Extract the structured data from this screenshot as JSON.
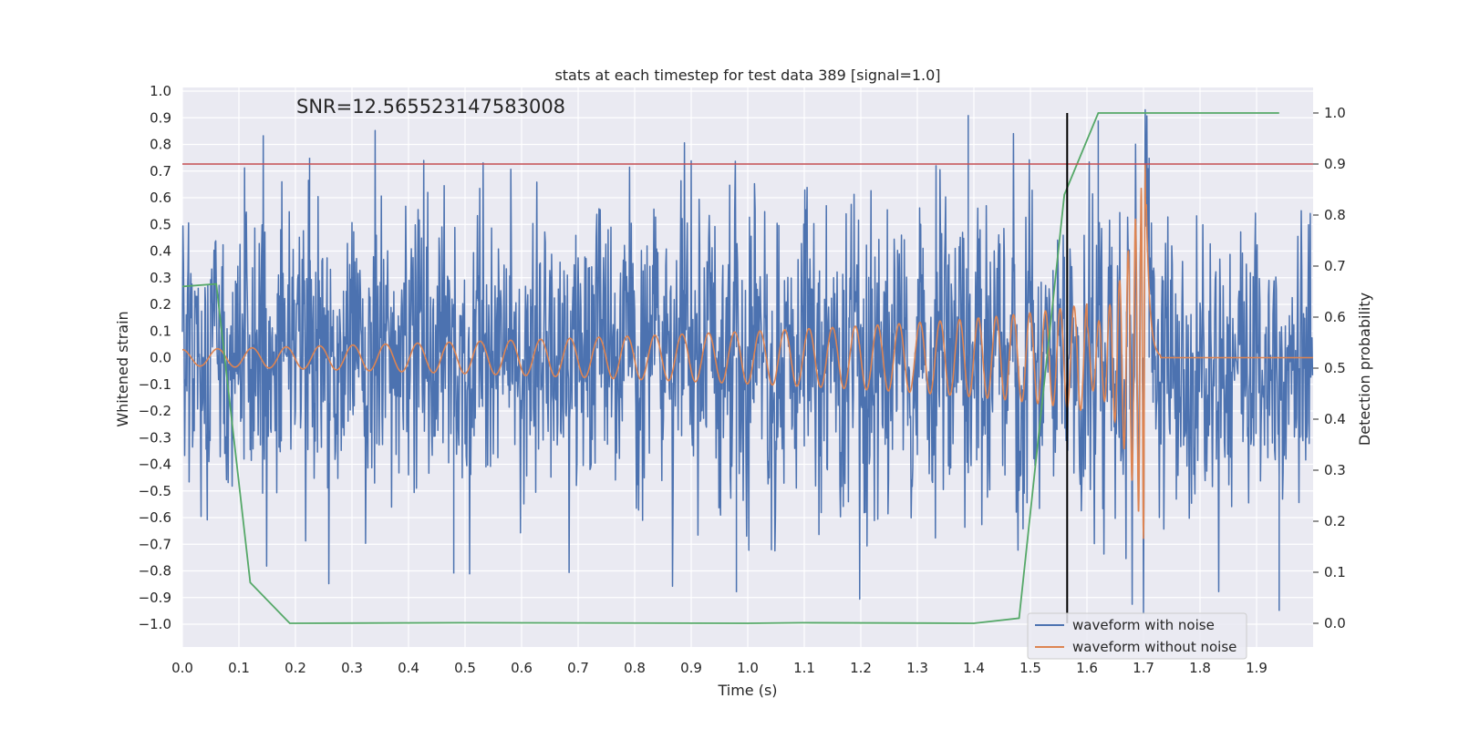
{
  "chart_data": {
    "type": "line",
    "title": "stats at each timestep for test data 389 [signal=1.0]",
    "xlabel": "Time (s)",
    "ylabel": "Whitened strain",
    "y2label": "Detection probability",
    "annotation": "SNR=12.565523147583008",
    "xlim": [
      0.0,
      2.0
    ],
    "ylim": [
      -1.09,
      1.0
    ],
    "y2lim": [
      -0.05,
      1.045
    ],
    "x_ticks": [
      "0.0",
      "0.1",
      "0.2",
      "0.3",
      "0.4",
      "0.5",
      "0.6",
      "0.7",
      "0.8",
      "0.9",
      "1.0",
      "1.1",
      "1.2",
      "1.3",
      "1.4",
      "1.5",
      "1.6",
      "1.7",
      "1.8",
      "1.9"
    ],
    "y_ticks": [
      "1.0",
      "0.9",
      "0.8",
      "0.7",
      "0.6",
      "0.5",
      "0.4",
      "0.3",
      "0.2",
      "0.1",
      "0.0",
      "−0.1",
      "−0.2",
      "−0.3",
      "−0.4",
      "−0.5",
      "−0.6",
      "−0.7",
      "−0.8",
      "−0.9",
      "−1.0"
    ],
    "y2_ticks": [
      "1.0",
      "0.9",
      "0.8",
      "0.7",
      "0.6",
      "0.5",
      "0.4",
      "0.3",
      "0.2",
      "0.1",
      "0.0"
    ],
    "grid": true,
    "legend_position": "lower-right",
    "series": [
      {
        "name": "waveform with noise",
        "color": "#4c72b0",
        "axis": "left",
        "description_samples": 2000,
        "approx_std": 0.27,
        "peak_points": [
          [
            0.225,
            0.75
          ],
          [
            1.39,
            0.91
          ],
          [
            1.62,
            0.89
          ],
          [
            1.71,
            0.75
          ],
          [
            0.48,
            -0.81
          ],
          [
            0.98,
            -0.88
          ],
          [
            1.7,
            -0.95
          ],
          [
            1.94,
            -0.95
          ]
        ]
      },
      {
        "name": "waveform without noise",
        "color": "#dd8452",
        "axis": "left",
        "chirp_start_freq_hz": 16,
        "merger_time_s": 1.705,
        "peak_amplitude": 0.75,
        "min_amplitude": -0.68,
        "flat_after_s": 1.73
      },
      {
        "name": "",
        "color": "#55a868",
        "axis": "right",
        "x": [
          0.0,
          0.06,
          0.12,
          0.19,
          0.5,
          1.0,
          1.1,
          1.4,
          1.48,
          1.56,
          1.62,
          1.94
        ],
        "y": [
          0.66,
          0.665,
          0.08,
          0.0,
          0.001,
          0.0,
          0.001,
          0.0,
          0.01,
          0.84,
          1.0,
          1.0
        ]
      }
    ],
    "threshold_line": {
      "axis": "right",
      "value": 0.9,
      "color": "#c44e52"
    },
    "vertical_marker": {
      "x": 1.565,
      "color": "#000000"
    }
  }
}
